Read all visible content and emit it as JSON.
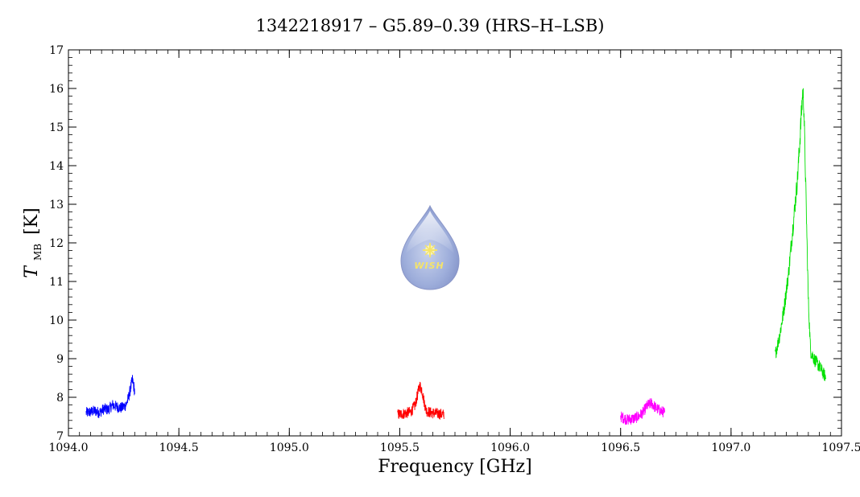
{
  "chart_data": {
    "type": "line",
    "title": "1342218917 – G5.89–0.39 (HRS–H–LSB)",
    "xlabel": "Frequency [GHz]",
    "ylabel_main": "T",
    "ylabel_sub": "MB",
    "ylabel_unit": "[K]",
    "xlim": [
      1094.0,
      1097.5
    ],
    "ylim": [
      7,
      17
    ],
    "x_ticks": [
      1094.0,
      1094.5,
      1095.0,
      1095.5,
      1096.0,
      1096.5,
      1097.0,
      1097.5
    ],
    "x_tick_labels": [
      "1094.0",
      "1094.5",
      "1095.0",
      "1095.5",
      "1096.0",
      "1096.5",
      "1097.0",
      "1097.5"
    ],
    "y_ticks": [
      7,
      8,
      9,
      10,
      11,
      12,
      13,
      14,
      15,
      16,
      17
    ],
    "y_tick_labels": [
      "7",
      "8",
      "9",
      "10",
      "11",
      "12",
      "13",
      "14",
      "15",
      "16",
      "17"
    ],
    "logo_text": "WISH",
    "series": [
      {
        "color": "#0000ff",
        "x": [
          1094.08,
          1094.1,
          1094.12,
          1094.14,
          1094.16,
          1094.18,
          1094.2,
          1094.22,
          1094.24,
          1094.26,
          1094.27,
          1094.28,
          1094.29,
          1094.3
        ],
        "y": [
          7.6,
          7.62,
          7.65,
          7.6,
          7.7,
          7.68,
          7.8,
          7.75,
          7.72,
          7.8,
          7.95,
          8.2,
          8.45,
          8.15
        ]
      },
      {
        "color": "#ff0000",
        "x": [
          1095.49,
          1095.52,
          1095.55,
          1095.57,
          1095.58,
          1095.59,
          1095.6,
          1095.61,
          1095.62,
          1095.64,
          1095.67,
          1095.7
        ],
        "y": [
          7.55,
          7.58,
          7.62,
          7.8,
          8.05,
          8.3,
          8.2,
          7.9,
          7.65,
          7.6,
          7.58,
          7.55
        ]
      },
      {
        "color": "#ff00ff",
        "x": [
          1096.5,
          1096.53,
          1096.56,
          1096.58,
          1096.6,
          1096.62,
          1096.64,
          1096.66,
          1096.68,
          1096.7
        ],
        "y": [
          7.5,
          7.42,
          7.45,
          7.5,
          7.6,
          7.78,
          7.85,
          7.72,
          7.65,
          7.6
        ]
      },
      {
        "color": "#00e000",
        "x": [
          1097.2,
          1097.22,
          1097.24,
          1097.26,
          1097.28,
          1097.3,
          1097.31,
          1097.32,
          1097.325,
          1097.33,
          1097.34,
          1097.35,
          1097.36,
          1097.38,
          1097.4,
          1097.43
        ],
        "y": [
          9.1,
          9.6,
          10.3,
          11.2,
          12.4,
          13.6,
          14.5,
          15.5,
          15.95,
          15.5,
          13.0,
          10.5,
          9.2,
          8.95,
          8.8,
          8.5
        ]
      }
    ]
  }
}
